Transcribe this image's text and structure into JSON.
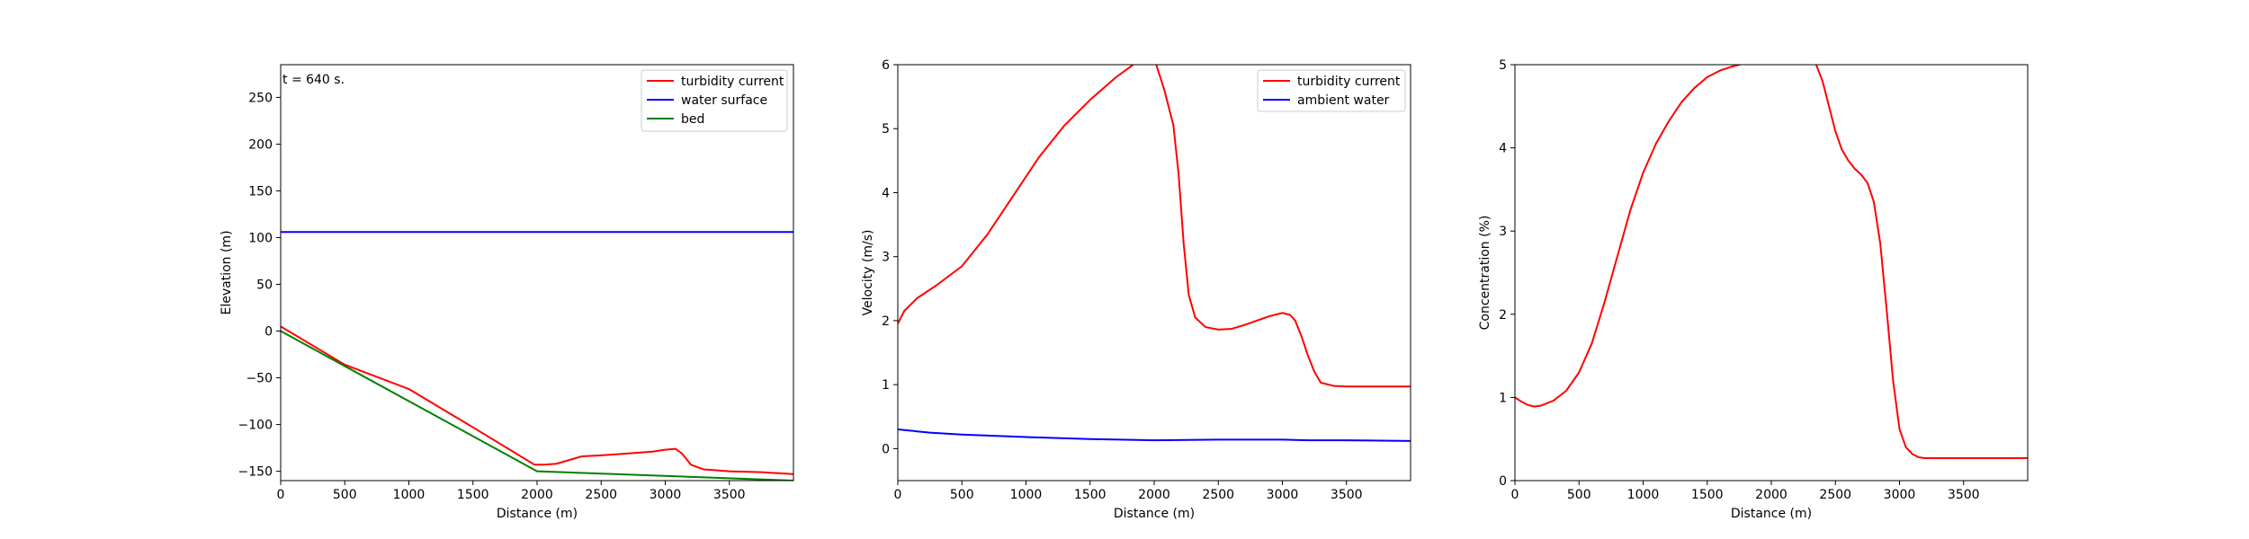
{
  "chart_data": [
    {
      "type": "line",
      "annotation": "t = 640 s.",
      "xlabel": "Distance (m)",
      "ylabel": "Elevation (m)",
      "xlim": [
        0,
        4000
      ],
      "ylim": [
        -160,
        285
      ],
      "xticks": [
        0,
        500,
        1000,
        1500,
        2000,
        2500,
        3000,
        3500
      ],
      "yticks": [
        -150,
        -100,
        -50,
        0,
        50,
        100,
        150,
        200,
        250
      ],
      "ytick_labels": [
        "−150",
        "−100",
        "−50",
        "0",
        "50",
        "100",
        "150",
        "200",
        "250"
      ],
      "legend": "top-right",
      "series": [
        {
          "name": "turbidity current",
          "color": "#ff0000",
          "x": [
            0,
            500,
            1000,
            1500,
            1980,
            2050,
            2150,
            2250,
            2350,
            2500,
            2700,
            2900,
            3000,
            3080,
            3130,
            3200,
            3300,
            3500,
            3750,
            4000
          ],
          "y": [
            5,
            -36,
            -62,
            -103,
            -143,
            -143,
            -142,
            -138,
            -134,
            -133,
            -131,
            -129,
            -127,
            -126,
            -131,
            -143,
            -148,
            -150,
            -151,
            -153
          ]
        },
        {
          "name": "water surface",
          "color": "#0000ff",
          "x": [
            0,
            4000
          ],
          "y": [
            106,
            106
          ]
        },
        {
          "name": "bed",
          "color": "#008000",
          "x": [
            0,
            2000,
            4000
          ],
          "y": [
            0,
            -150,
            -160
          ]
        }
      ]
    },
    {
      "type": "line",
      "xlabel": "Distance (m)",
      "ylabel": "Velocity (m/s)",
      "xlim": [
        0,
        4000
      ],
      "ylim": [
        -0.5,
        6
      ],
      "xticks": [
        0,
        500,
        1000,
        1500,
        2000,
        2500,
        3000,
        3500
      ],
      "yticks": [
        0,
        1,
        2,
        3,
        4,
        5,
        6
      ],
      "ytick_labels": [
        "0",
        "1",
        "2",
        "3",
        "4",
        "5",
        "6"
      ],
      "legend": "top-right",
      "series": [
        {
          "name": "turbidity current",
          "color": "#ff0000",
          "x": [
            0,
            50,
            150,
            300,
            500,
            700,
            900,
            1100,
            1300,
            1500,
            1700,
            1850,
            1900,
            2000,
            2080,
            2150,
            2190,
            2230,
            2270,
            2320,
            2400,
            2500,
            2600,
            2700,
            2800,
            2900,
            3000,
            3060,
            3100,
            3150,
            3200,
            3250,
            3300,
            3400,
            3500,
            3700,
            4000
          ],
          "y": [
            1.95,
            2.15,
            2.35,
            2.55,
            2.85,
            3.35,
            3.95,
            4.55,
            5.05,
            5.45,
            5.8,
            6.02,
            6.1,
            6.1,
            5.6,
            5.05,
            4.3,
            3.2,
            2.4,
            2.05,
            1.9,
            1.86,
            1.87,
            1.93,
            2.0,
            2.07,
            2.12,
            2.09,
            2.0,
            1.75,
            1.45,
            1.2,
            1.03,
            0.98,
            0.97,
            0.97,
            0.97
          ]
        },
        {
          "name": "ambient water",
          "color": "#0000ff",
          "x": [
            0,
            250,
            500,
            1000,
            1500,
            2000,
            2500,
            3000,
            3200,
            3500,
            4000
          ],
          "y": [
            0.3,
            0.25,
            0.22,
            0.18,
            0.15,
            0.13,
            0.14,
            0.14,
            0.13,
            0.13,
            0.12
          ]
        }
      ]
    },
    {
      "type": "line",
      "xlabel": "Distance (m)",
      "ylabel": "Concentration (%)",
      "xlim": [
        0,
        4000
      ],
      "ylim": [
        0,
        5
      ],
      "xticks": [
        0,
        500,
        1000,
        1500,
        2000,
        2500,
        3000,
        3500
      ],
      "yticks": [
        0,
        1,
        2,
        3,
        4,
        5
      ],
      "ytick_labels": [
        "0",
        "1",
        "2",
        "3",
        "4",
        "5"
      ],
      "legend": "none",
      "series": [
        {
          "name": "",
          "color": "#ff0000",
          "x": [
            0,
            50,
            100,
            150,
            200,
            300,
            400,
            500,
            600,
            700,
            800,
            900,
            1000,
            1100,
            1200,
            1300,
            1400,
            1500,
            1600,
            1700,
            1800,
            1900,
            2000,
            2100,
            2200,
            2300,
            2350,
            2400,
            2450,
            2500,
            2550,
            2600,
            2650,
            2700,
            2750,
            2800,
            2850,
            2900,
            2950,
            3000,
            3050,
            3100,
            3150,
            3200,
            3300,
            3500,
            4000
          ],
          "y": [
            1.0,
            0.95,
            0.91,
            0.89,
            0.9,
            0.96,
            1.08,
            1.3,
            1.65,
            2.15,
            2.7,
            3.25,
            3.7,
            4.05,
            4.32,
            4.55,
            4.72,
            4.85,
            4.93,
            4.98,
            5.02,
            5.04,
            5.05,
            5.05,
            5.05,
            5.05,
            5.0,
            4.8,
            4.5,
            4.2,
            3.98,
            3.85,
            3.75,
            3.68,
            3.58,
            3.35,
            2.85,
            2.05,
            1.2,
            0.62,
            0.4,
            0.32,
            0.28,
            0.27,
            0.27,
            0.27,
            0.27
          ]
        }
      ]
    }
  ]
}
